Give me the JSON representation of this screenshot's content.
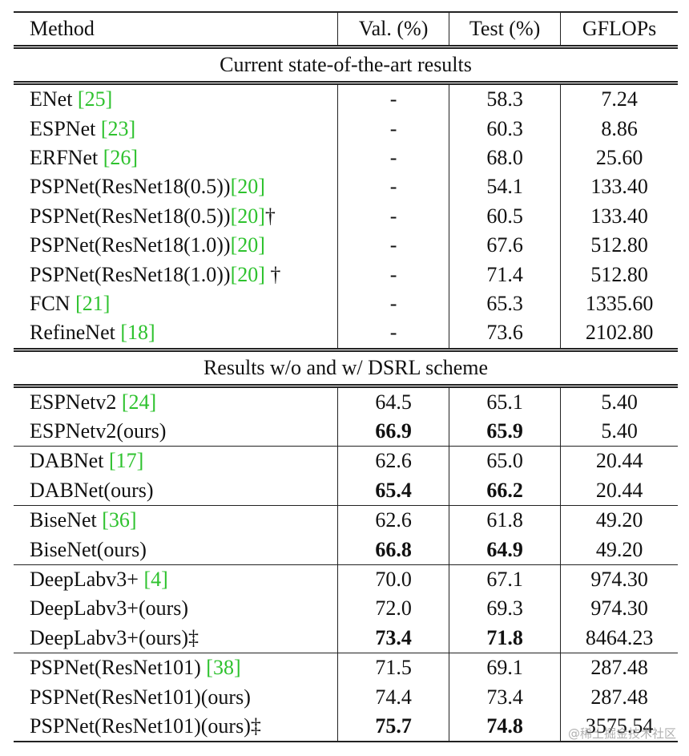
{
  "header": {
    "method": "Method",
    "val": "Val. (%)",
    "test": "Test (%)",
    "gflops": "GFLOPs"
  },
  "section1": {
    "title": "Current state-of-the-art results",
    "rows": [
      {
        "name": "ENet ",
        "ref": "[25]",
        "suffix": "",
        "val": "-",
        "test": "58.3",
        "gflops": "7.24"
      },
      {
        "name": "ESPNet ",
        "ref": "[23]",
        "suffix": "",
        "val": "-",
        "test": "60.3",
        "gflops": "8.86"
      },
      {
        "name": "ERFNet ",
        "ref": "[26]",
        "suffix": "",
        "val": "-",
        "test": "68.0",
        "gflops": "25.60"
      },
      {
        "name": "PSPNet(ResNet18(0.5))",
        "ref": "[20]",
        "suffix": "",
        "val": "-",
        "test": "54.1",
        "gflops": "133.40"
      },
      {
        "name": "PSPNet(ResNet18(0.5))",
        "ref": "[20]",
        "suffix": "†",
        "val": "-",
        "test": "60.5",
        "gflops": "133.40"
      },
      {
        "name": "PSPNet(ResNet18(1.0))",
        "ref": "[20]",
        "suffix": "",
        "val": "-",
        "test": "67.6",
        "gflops": "512.80"
      },
      {
        "name": "PSPNet(ResNet18(1.0))",
        "ref": "[20]",
        "suffix": " †",
        "val": "-",
        "test": "71.4",
        "gflops": "512.80"
      },
      {
        "name": "FCN ",
        "ref": "[21]",
        "suffix": "",
        "val": "-",
        "test": "65.3",
        "gflops": "1335.60"
      },
      {
        "name": "RefineNet ",
        "ref": "[18]",
        "suffix": "",
        "val": "-",
        "test": "73.6",
        "gflops": "2102.80"
      }
    ]
  },
  "section2": {
    "title": "Results w/o and w/ DSRL scheme",
    "groups": [
      [
        {
          "name": "ESPNetv2 ",
          "ref": "[24]",
          "suffix": "",
          "val": "64.5",
          "test": "65.1",
          "gflops": "5.40"
        },
        {
          "name": "ESPNetv2(ours)",
          "ref": "",
          "suffix": "",
          "val": "66.9",
          "test": "65.9",
          "gflops": "5.40"
        }
      ],
      [
        {
          "name": "DABNet ",
          "ref": "[17]",
          "suffix": "",
          "val": "62.6",
          "test": "65.0",
          "gflops": "20.44"
        },
        {
          "name": "DABNet(ours)",
          "ref": "",
          "suffix": "",
          "val": "65.4",
          "test": "66.2",
          "gflops": "20.44"
        }
      ],
      [
        {
          "name": "BiseNet ",
          "ref": "[36]",
          "suffix": "",
          "val": "62.6",
          "test": "61.8",
          "gflops": "49.20"
        },
        {
          "name": "BiseNet(ours)",
          "ref": "",
          "suffix": "",
          "val": "66.8",
          "test": "64.9",
          "gflops": "49.20"
        }
      ],
      [
        {
          "name": "DeepLabv3+ ",
          "ref": "[4]",
          "suffix": "",
          "val": "70.0",
          "test": "67.1",
          "gflops": "974.30"
        },
        {
          "name": "DeepLabv3+(ours)",
          "ref": "",
          "suffix": "",
          "val": "72.0",
          "test": "69.3",
          "gflops": "974.30"
        },
        {
          "name": "DeepLabv3+(ours)",
          "ref": "",
          "suffix": "‡",
          "val": "73.4",
          "test": "71.8",
          "gflops": "8464.23"
        }
      ],
      [
        {
          "name": "PSPNet(ResNet101) ",
          "ref": "[38]",
          "suffix": "",
          "val": "71.5",
          "test": "69.1",
          "gflops": "287.48"
        },
        {
          "name": "PSPNet(ResNet101)(ours)",
          "ref": "",
          "suffix": "",
          "val": "74.4",
          "test": "73.4",
          "gflops": "287.48"
        },
        {
          "name": "PSPNet(ResNet101)(ours)",
          "ref": "",
          "suffix": "‡",
          "val": "75.7",
          "test": "74.8",
          "gflops": "3575.54"
        }
      ]
    ]
  },
  "watermark": "@稀土掘金技术社区"
}
